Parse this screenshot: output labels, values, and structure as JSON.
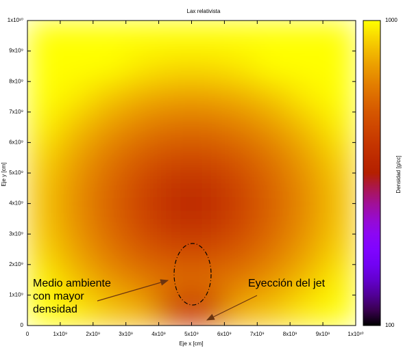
{
  "chart_data": {
    "type": "heatmap",
    "title": "Lax relativista",
    "xlabel": "Eje x [cm]",
    "ylabel": "Eje y [cm]",
    "zlabel": "Densidad [g/cc]",
    "x": [
      500000000,
      1500000000,
      2500000000,
      3500000000,
      4500000000,
      5500000000,
      6500000000,
      7500000000,
      8500000000,
      9500000000
    ],
    "y": [
      500000000,
      1500000000,
      2500000000,
      3500000000,
      4500000000,
      5500000000,
      6500000000,
      7500000000,
      8500000000,
      9500000000
    ],
    "z": [
      [
        1000,
        940,
        826,
        751,
        400,
        400,
        751,
        826,
        940,
        1000
      ],
      [
        953,
        803,
        689,
        609,
        568,
        568,
        609,
        689,
        803,
        953
      ],
      [
        862,
        711,
        592,
        504,
        453,
        453,
        504,
        592,
        711,
        862
      ],
      [
        817,
        664,
        541,
        442,
        369,
        369,
        442,
        541,
        664,
        817
      ],
      [
        817,
        664,
        541,
        442,
        369,
        369,
        442,
        541,
        664,
        817
      ],
      [
        862,
        711,
        592,
        504,
        453,
        453,
        504,
        592,
        711,
        862
      ],
      [
        953,
        803,
        689,
        609,
        568,
        568,
        609,
        689,
        803,
        953
      ],
      [
        1000,
        940,
        826,
        751,
        713,
        713,
        751,
        826,
        940,
        1000
      ],
      [
        1000,
        1000,
        1000,
        933,
        895,
        895,
        933,
        1000,
        1000,
        1000
      ],
      [
        1000,
        1000,
        1000,
        1000,
        1000,
        1000,
        1000,
        1000,
        1000,
        1000
      ]
    ],
    "xlim": [
      0,
      10000000000
    ],
    "ylim": [
      0,
      10000000000
    ],
    "xticks": [
      0,
      {
        "value": 1000000000,
        "label": "1x10⁹"
      },
      {
        "value": 2000000000,
        "label": "2x10⁹"
      },
      {
        "value": 3000000000,
        "label": "3x10⁹"
      },
      {
        "value": 4000000000,
        "label": "4x10⁹"
      },
      {
        "value": 5000000000,
        "label": "5x10⁹"
      },
      {
        "value": 6000000000,
        "label": "6x10⁹"
      },
      {
        "value": 7000000000,
        "label": "7x10⁹"
      },
      {
        "value": 8000000000,
        "label": "8x10⁹"
      },
      {
        "value": 9000000000,
        "label": "9x10⁹"
      },
      {
        "value": 10000000000,
        "label": "1x10¹⁰"
      }
    ],
    "yticks": [
      0,
      {
        "value": 1000000000,
        "label": "1x10⁹"
      },
      {
        "value": 2000000000,
        "label": "2x10⁹"
      },
      {
        "value": 3000000000,
        "label": "3x10⁹"
      },
      {
        "value": 4000000000,
        "label": "4x10⁹"
      },
      {
        "value": 5000000000,
        "label": "5x10⁹"
      },
      {
        "value": 6000000000,
        "label": "6x10⁹"
      },
      {
        "value": 7000000000,
        "label": "7x10⁹"
      },
      {
        "value": 8000000000,
        "label": "8x10⁹"
      },
      {
        "value": 9000000000,
        "label": "9x10⁹"
      },
      {
        "value": 10000000000,
        "label": "1x10¹⁰"
      }
    ],
    "zlim": [
      100,
      1000
    ],
    "zticks": [
      100,
      1000
    ],
    "zlog": true,
    "annotations": [
      [
        "Medio ambiente",
        "con mayor",
        "densidad"
      ],
      [
        "Eyección del jet"
      ]
    ]
  }
}
